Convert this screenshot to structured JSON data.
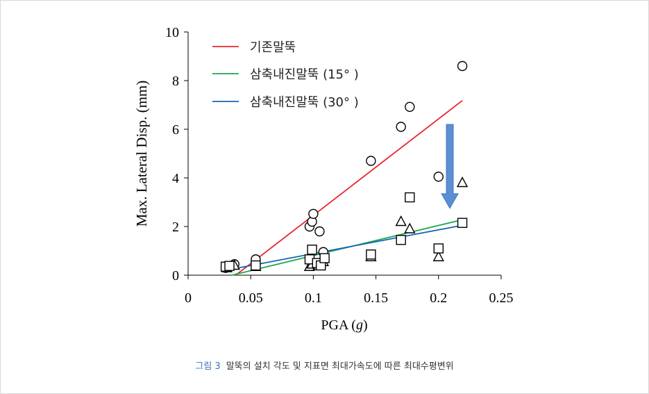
{
  "caption": {
    "figure_label": "그림 3",
    "text": "말뚝의 설치 각도 및 지표면 최대가속도에 따른 최대수평변위"
  },
  "chart_data": {
    "type": "scatter",
    "xlabel_prefix": "PGA (",
    "xlabel_var": "g",
    "xlabel_suffix": ")",
    "ylabel": "Max. Lateral Disp. (mm)",
    "xlim": [
      0,
      0.25
    ],
    "ylim": [
      0,
      10
    ],
    "xticks": [
      0,
      0.05,
      0.1,
      0.15,
      0.2,
      0.25
    ],
    "xtick_labels": [
      "0",
      "0.05",
      "0.1",
      "0.15",
      "0.2",
      "0.25"
    ],
    "yticks": [
      0,
      2,
      4,
      6,
      8,
      10
    ],
    "ytick_labels": [
      "0",
      "2",
      "4",
      "6",
      "8",
      "10"
    ],
    "grid": false,
    "legend_position": "top-left",
    "series": [
      {
        "name": "기존말뚝",
        "color": "#e8242b",
        "marker": "circle",
        "points": [
          [
            0.03,
            0.3
          ],
          [
            0.037,
            0.45
          ],
          [
            0.054,
            0.65
          ],
          [
            0.097,
            2.0
          ],
          [
            0.099,
            2.2
          ],
          [
            0.1,
            2.52
          ],
          [
            0.105,
            1.8
          ],
          [
            0.108,
            0.95
          ],
          [
            0.146,
            4.7
          ],
          [
            0.17,
            6.1
          ],
          [
            0.177,
            6.92
          ],
          [
            0.2,
            4.05
          ],
          [
            0.219,
            8.6
          ]
        ],
        "fit": [
          [
            0.038,
            0.0
          ],
          [
            0.219,
            7.18
          ]
        ]
      },
      {
        "name": "삼축내진말뚝 (15°  )",
        "color": "#1aa84a",
        "marker": "triangle",
        "points": [
          [
            0.031,
            0.3
          ],
          [
            0.037,
            0.4
          ],
          [
            0.054,
            0.35
          ],
          [
            0.097,
            0.35
          ],
          [
            0.099,
            0.45
          ],
          [
            0.104,
            0.4
          ],
          [
            0.108,
            0.55
          ],
          [
            0.146,
            0.75
          ],
          [
            0.17,
            2.2
          ],
          [
            0.177,
            1.9
          ],
          [
            0.2,
            0.75
          ],
          [
            0.219,
            3.8
          ]
        ],
        "fit": [
          [
            0.035,
            0.0
          ],
          [
            0.219,
            2.28
          ]
        ]
      },
      {
        "name": "삼축내진말뚝 (30°  )",
        "color": "#1565b8",
        "marker": "square",
        "points": [
          [
            0.03,
            0.35
          ],
          [
            0.033,
            0.38
          ],
          [
            0.054,
            0.4
          ],
          [
            0.097,
            0.65
          ],
          [
            0.099,
            1.05
          ],
          [
            0.103,
            0.5
          ],
          [
            0.106,
            0.4
          ],
          [
            0.109,
            0.7
          ],
          [
            0.146,
            0.85
          ],
          [
            0.17,
            1.45
          ],
          [
            0.177,
            3.2
          ],
          [
            0.2,
            1.1
          ],
          [
            0.219,
            2.15
          ]
        ],
        "fit": [
          [
            0.03,
            0.2
          ],
          [
            0.219,
            2.05
          ]
        ]
      }
    ],
    "annotation": {
      "type": "arrow",
      "direction": "down",
      "color": "#5b8fd3",
      "from": [
        0.209,
        6.2
      ],
      "to": [
        0.209,
        2.75
      ]
    }
  }
}
